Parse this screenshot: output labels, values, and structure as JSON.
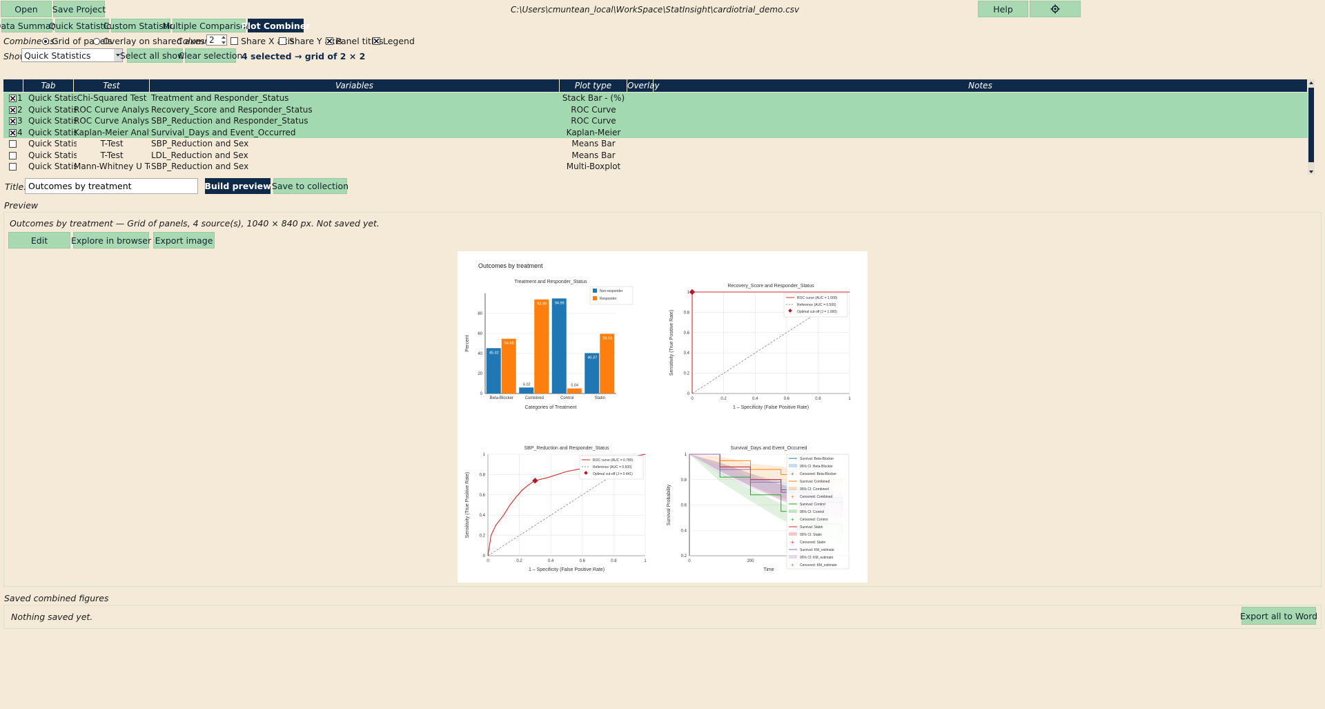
{
  "toolbar": {
    "open": "Open",
    "save_project": "Save Project",
    "path": "C:\\Users\\cmuntean_local\\WorkSpace\\StatInsight\\cardiotrial_demo.csv",
    "help": "Help",
    "settings_icon": "gear-icon"
  },
  "tabs": [
    "Data Summary",
    "Quick Statistics",
    "Custom Statistics",
    "Multiple Comparisons",
    "Plot Combiner"
  ],
  "active_tab": "Plot Combiner",
  "options": {
    "combine_as_label": "Combine as:",
    "grid_label": "Grid of panels",
    "overlay_label": "Overlay on shared axes",
    "columns_label": "Columns:",
    "columns_value": "2",
    "share_x": "Share X axis",
    "share_y": "Share Y axis",
    "panel_titles": "Panel titles",
    "legend": "Legend"
  },
  "show": {
    "label": "Show:",
    "value": "Quick Statistics",
    "select_all": "Select all shown",
    "clear": "Clear selection",
    "status": "4 selected → grid of 2 × 2"
  },
  "table": {
    "headers": [
      "Tab",
      "Test",
      "Variables",
      "Plot type",
      "Overlay",
      "Notes"
    ],
    "rows": [
      {
        "checked": true,
        "num": "1",
        "tab": "Quick Statistics",
        "test": "Chi-Squared Test",
        "vars": "Treatment and Responder_Status",
        "plot": "Stack Bar - (%)"
      },
      {
        "checked": true,
        "num": "2",
        "tab": "Quick Statistics",
        "test": "ROC Curve Analysis",
        "vars": "Recovery_Score and Responder_Status",
        "plot": "ROC Curve"
      },
      {
        "checked": true,
        "num": "3",
        "tab": "Quick Statistics",
        "test": "ROC Curve Analysis",
        "vars": "SBP_Reduction and Responder_Status",
        "plot": "ROC Curve"
      },
      {
        "checked": true,
        "num": "4",
        "tab": "Quick Statistics",
        "test": "Kaplan-Meier Analysis",
        "vars": "Survival_Days and Event_Occurred",
        "plot": "Kaplan-Meier"
      },
      {
        "checked": false,
        "num": "",
        "tab": "Quick Statistics",
        "test": "T-Test",
        "vars": "SBP_Reduction and Sex",
        "plot": "Means Bar"
      },
      {
        "checked": false,
        "num": "",
        "tab": "Quick Statistics",
        "test": "T-Test",
        "vars": "LDL_Reduction and Sex",
        "plot": "Means Bar"
      },
      {
        "checked": false,
        "num": "",
        "tab": "Quick Statistics",
        "test": "Mann-Whitney U Test",
        "vars": "SBP_Reduction and Sex",
        "plot": "Multi-Boxplot"
      }
    ]
  },
  "title_row": {
    "label": "Title:",
    "value": "Outcomes by treatment",
    "build": "Build preview",
    "save": "Save to collection"
  },
  "preview": {
    "section": "Preview",
    "info": "Outcomes by treatment — Grid of panels, 4 source(s), 1040 × 840 px. Not saved yet.",
    "edit": "Edit",
    "explore": "Explore in browser",
    "export": "Export image"
  },
  "saved": {
    "section": "Saved combined figures",
    "empty": "Nothing saved yet.",
    "export_word": "Export all to Word"
  },
  "chart_data": [
    {
      "type": "bar",
      "figure_title": "Outcomes by treatment",
      "title": "Treatment and Responder_Status",
      "categories": [
        "Beta-Blocker",
        "Combined",
        "Control",
        "Statin"
      ],
      "series": [
        {
          "name": "Non-responder",
          "values": [
            45.32,
            6.02,
            94.96,
            40.37
          ],
          "color": "#1f77b4"
        },
        {
          "name": "Responder",
          "values": [
            54.68,
            93.98,
            5.04,
            59.63
          ],
          "color": "#ff7f0e"
        }
      ],
      "xlabel": "Categories of Treatment",
      "ylabel": "Percent",
      "ylim": [
        0,
        100
      ],
      "yticks": [
        0,
        20,
        40,
        60,
        80
      ],
      "legend": "top-right"
    },
    {
      "type": "line",
      "title": "Recovery_Score and Responder_Status",
      "xlabel": "1 – Specificity (False Positive Rate)",
      "ylabel": "Sensitivity (True Positive Rate)",
      "xticks": [
        "0",
        "0.2",
        "0.4",
        "0.6",
        "0.8",
        "1"
      ],
      "yticks": [
        "0",
        "0.2",
        "0.4",
        "0.6",
        "0.8",
        "1"
      ],
      "legend_items": [
        "ROC curve (AUC = 1.000)",
        "Reference (AUC = 0.500)",
        "Optimal cut-off (J = 1.000)"
      ],
      "roc": [
        [
          0,
          0
        ],
        [
          0,
          1
        ],
        [
          1,
          1
        ]
      ],
      "cutoff": [
        0,
        1
      ]
    },
    {
      "type": "line",
      "title": "SBP_Reduction and Responder_Status",
      "xlabel": "1 – Specificity (False Positive Rate)",
      "ylabel": "Sensitivity (True Positive Rate)",
      "xticks": [
        "0",
        "0.2",
        "0.4",
        "0.6",
        "0.8",
        "1"
      ],
      "yticks": [
        "0",
        "0.2",
        "0.4",
        "0.6",
        "0.8",
        "1"
      ],
      "legend_items": [
        "ROC curve (AUC = 0.780)",
        "Reference (AUC = 0.500)",
        "Optimal cut-off (J = 0.441)"
      ],
      "roc": [
        [
          0,
          0
        ],
        [
          0.01,
          0.1
        ],
        [
          0.02,
          0.2
        ],
        [
          0.05,
          0.3
        ],
        [
          0.1,
          0.4
        ],
        [
          0.14,
          0.5
        ],
        [
          0.18,
          0.58
        ],
        [
          0.22,
          0.65
        ],
        [
          0.26,
          0.7
        ],
        [
          0.3,
          0.74
        ],
        [
          0.38,
          0.77
        ],
        [
          0.5,
          0.83
        ],
        [
          0.6,
          0.86
        ],
        [
          0.7,
          0.9
        ],
        [
          0.8,
          0.94
        ],
        [
          0.9,
          0.97
        ],
        [
          1,
          1
        ]
      ],
      "cutoff": [
        0.3,
        0.74
      ]
    },
    {
      "type": "line",
      "title": "Survival_Days and Event_Occurred",
      "xlabel": "Time",
      "ylabel": "Survival Probability",
      "xticks": [
        "0",
        "200",
        "400"
      ],
      "yticks": [
        "0.2",
        "0.4",
        "0.6",
        "0.8",
        "1"
      ],
      "legend_items": [
        "Survival: Beta-Blocker",
        "95% CI: Beta-Blocker",
        "Censored: Beta-Blocker",
        "Survival: Combined",
        "95% CI: Combined",
        "Censored: Combined",
        "Survival: Control",
        "95% CI: Control",
        "Censored: Control",
        "Survival: Statin",
        "95% CI: Statin",
        "Censored: Statin",
        "Survival: KM_estimate",
        "95% CI: KM_estimate",
        "Censored: KM_estimate"
      ],
      "series": [
        {
          "name": "Beta-Blocker",
          "color": "#1f77b4",
          "x": [
            0,
            100,
            200,
            300,
            400,
            500
          ],
          "y": [
            1,
            0.9,
            0.8,
            0.72,
            0.66,
            0.6
          ]
        },
        {
          "name": "Combined",
          "color": "#ff7f0e",
          "x": [
            0,
            100,
            200,
            300,
            400,
            500
          ],
          "y": [
            1,
            0.95,
            0.88,
            0.84,
            0.8,
            0.76
          ]
        },
        {
          "name": "Control",
          "color": "#2ca02c",
          "x": [
            0,
            100,
            200,
            300,
            400,
            500
          ],
          "y": [
            1,
            0.82,
            0.68,
            0.55,
            0.45,
            0.38
          ]
        },
        {
          "name": "Statin",
          "color": "#d62728",
          "x": [
            0,
            100,
            200,
            300,
            400,
            500
          ],
          "y": [
            1,
            0.9,
            0.8,
            0.7,
            0.62,
            0.56
          ]
        },
        {
          "name": "KM_estimate",
          "color": "#9467bd",
          "x": [
            0,
            100,
            200,
            300,
            400,
            500
          ],
          "y": [
            1,
            0.88,
            0.78,
            0.7,
            0.62,
            0.58
          ]
        }
      ]
    }
  ]
}
